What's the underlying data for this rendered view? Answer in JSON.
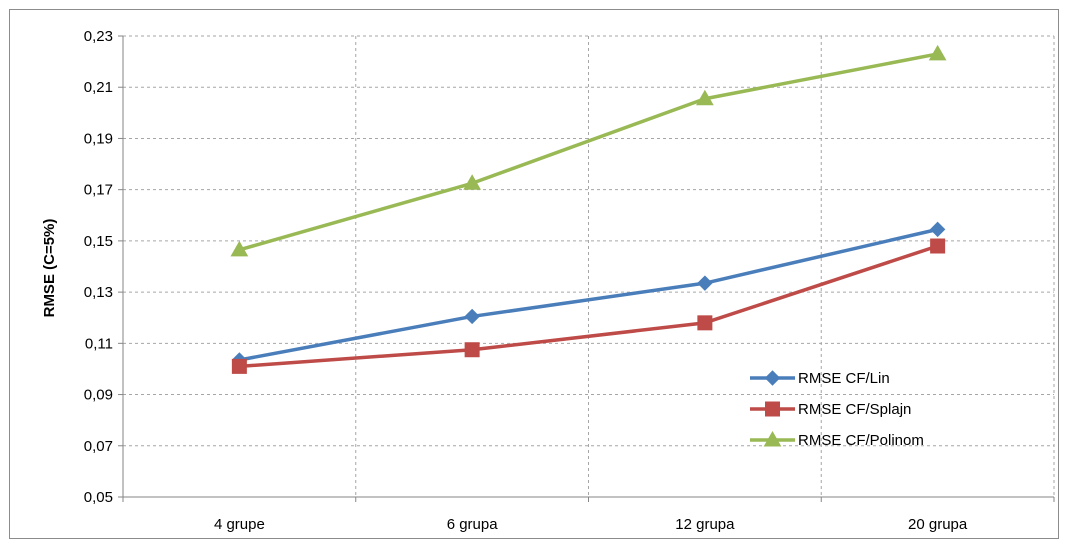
{
  "chart_data": {
    "type": "line",
    "categories": [
      "4 grupe",
      "6 grupa",
      "12 grupa",
      "20 grupa"
    ],
    "series": [
      {
        "name": "RMSE CF/Lin",
        "values": [
          0.1035,
          0.1205,
          0.1335,
          0.1545
        ],
        "color": "#4a7ebb",
        "marker": "diamond"
      },
      {
        "name": "RMSE CF/Splajn",
        "values": [
          0.101,
          0.1075,
          0.118,
          0.148
        ],
        "color": "#be4b48",
        "marker": "square"
      },
      {
        "name": "RMSE CF/Polinom",
        "values": [
          0.1465,
          0.1725,
          0.2055,
          0.223
        ],
        "color": "#98b954",
        "marker": "triangle"
      }
    ],
    "ylabel": "RMSE (C=5%)",
    "xlabel": "",
    "ylim": [
      0.05,
      0.23
    ],
    "yticks": [
      "0,05",
      "0,07",
      "0,09",
      "0,11",
      "0,13",
      "0,15",
      "0,17",
      "0,19",
      "0,21",
      "0,23"
    ],
    "grid": true,
    "legend_position": "bottom-right"
  }
}
